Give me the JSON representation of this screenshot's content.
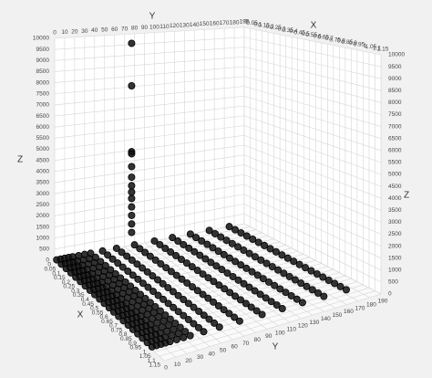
{
  "chart_data": {
    "type": "scatter3d",
    "xlabel": "X",
    "ylabel": "Y",
    "zlabel": "Z",
    "xlim": [
      0,
      1.15
    ],
    "ylim": [
      0,
      190
    ],
    "zlim": [
      0,
      10000
    ],
    "xticks": [
      0,
      0.05,
      0.1,
      0.15,
      0.2,
      0.25,
      0.3,
      0.35,
      0.4,
      0.45,
      0.5,
      0.55,
      0.6,
      0.65,
      0.7,
      0.75,
      0.8,
      0.85,
      0.9,
      0.95,
      1,
      1.05,
      1.1,
      1.15
    ],
    "yticks": [
      0,
      10,
      20,
      30,
      40,
      50,
      60,
      70,
      80,
      90,
      100,
      110,
      120,
      130,
      140,
      150,
      160,
      170,
      180,
      190
    ],
    "zticks": [
      0,
      500,
      1000,
      1500,
      2000,
      2500,
      3000,
      3500,
      4000,
      4500,
      5000,
      5500,
      6000,
      6500,
      7000,
      7500,
      8000,
      8500,
      9000,
      9500,
      10000
    ],
    "grid": true,
    "color": "#111111",
    "x": [
      0,
      0.05,
      0.1,
      0.15,
      0.2,
      0.25,
      0.3,
      0.35,
      0.4,
      0.45,
      0.5,
      0.55,
      0.6,
      0.65,
      0.7,
      0.75,
      0.8,
      0.85,
      0.9,
      0.95,
      1
    ],
    "series": [
      {
        "y": 2,
        "values": [
          0,
          0,
          0,
          0,
          0,
          0,
          0,
          0,
          0,
          0,
          0,
          0,
          0,
          0,
          0,
          0,
          0,
          0,
          0,
          0,
          0
        ]
      },
      {
        "y": 6,
        "values": [
          0,
          0,
          0,
          0,
          0,
          0,
          0,
          0,
          0,
          0,
          0,
          0,
          0,
          0,
          0,
          0,
          0,
          0,
          0,
          0,
          0
        ]
      },
      {
        "y": 10,
        "values": [
          0,
          0,
          0,
          0,
          0,
          0,
          0,
          0,
          0,
          0,
          0,
          0,
          0,
          0,
          0,
          0,
          0,
          0,
          0,
          0,
          0
        ]
      },
      {
        "y": 14,
        "values": [
          0,
          0,
          0,
          0,
          0,
          0,
          0,
          0,
          0,
          0,
          0,
          0,
          0,
          0,
          0,
          0,
          0,
          0,
          0,
          0,
          0
        ]
      },
      {
        "y": 18,
        "values": [
          0,
          0,
          0,
          0,
          0,
          0,
          0,
          0,
          0,
          0,
          0,
          0,
          0,
          0,
          0,
          0,
          0,
          0,
          0,
          0,
          0
        ]
      },
      {
        "y": 24,
        "values": [
          0,
          0,
          0,
          0,
          0,
          0,
          0,
          0,
          0,
          0,
          0,
          0,
          0,
          0,
          0,
          0,
          0,
          0,
          0,
          0,
          0
        ]
      },
      {
        "y": 30,
        "values": [
          0,
          0,
          0,
          0,
          0,
          0,
          0,
          0,
          0,
          0,
          0,
          0,
          0,
          0,
          0,
          0,
          0,
          0,
          0,
          0,
          0
        ]
      },
      {
        "y": 36,
        "values": [
          0,
          0,
          0,
          0,
          0,
          0,
          0,
          0,
          0,
          0,
          0,
          0,
          0,
          0,
          0,
          0,
          0,
          0,
          0,
          0,
          0
        ]
      },
      {
        "y": 48,
        "values": [
          0,
          0,
          0,
          0,
          0,
          0,
          0,
          0,
          0,
          0,
          0,
          0,
          0,
          0,
          0,
          0,
          0,
          0,
          0,
          0,
          0
        ]
      },
      {
        "y": 62,
        "values": [
          0,
          0,
          0,
          0,
          0,
          0,
          0,
          0,
          0,
          0,
          0,
          0,
          0,
          0,
          0,
          0,
          0,
          0,
          0,
          0,
          0
        ]
      },
      {
        "y": 80,
        "values": [
          0,
          0,
          0,
          0,
          0,
          0,
          0,
          0,
          0,
          0,
          0,
          0,
          0,
          0,
          0,
          0,
          0,
          0,
          0,
          0,
          0
        ]
      },
      {
        "y": 100,
        "values": [
          0,
          0,
          0,
          0,
          0,
          0,
          0,
          0,
          0,
          0,
          0,
          0,
          0,
          0,
          0,
          0,
          0,
          0,
          0,
          0,
          0
        ]
      },
      {
        "y": 118,
        "values": [
          0,
          0,
          0,
          0,
          0,
          0,
          0,
          0,
          0,
          0,
          0,
          0,
          0,
          0,
          0,
          0,
          0,
          0,
          0,
          0,
          0
        ]
      },
      {
        "y": 136,
        "values": [
          0,
          0,
          0,
          0,
          0,
          0,
          0,
          0,
          0,
          0,
          0,
          0,
          0,
          0,
          0,
          0,
          0,
          0,
          0,
          0,
          0
        ]
      },
      {
        "y": 155,
        "values": [
          0,
          0,
          0,
          0,
          0,
          0,
          0,
          0,
          0,
          0,
          0,
          0,
          0,
          0,
          0,
          0,
          0,
          0,
          0,
          0,
          0
        ]
      },
      {
        "y": 175,
        "values": [
          0,
          0,
          0,
          0,
          0,
          0,
          0,
          0,
          0,
          0,
          0,
          0,
          0,
          0,
          0,
          0,
          0,
          0,
          0,
          0,
          0
        ]
      },
      {
        "y": 75,
        "x": [
          0.02,
          0.02,
          0.02,
          0.02,
          0.02,
          0.02,
          0.02,
          0.02,
          0.02,
          0.02,
          0.02,
          0.02,
          0.02
        ],
        "values": [
          9600,
          7600,
          4500,
          4400,
          3800,
          3300,
          2900,
          2600,
          2300,
          1900,
          1500,
          1100,
          700
        ]
      }
    ]
  }
}
